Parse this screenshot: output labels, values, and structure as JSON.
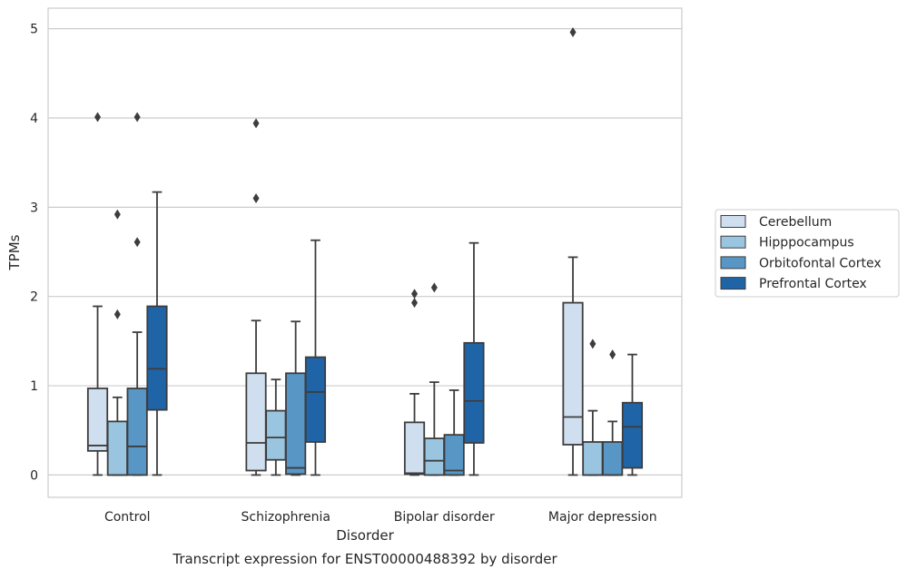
{
  "chart_data": {
    "type": "box",
    "title": "Transcript expression for ENST00000488392 by disorder",
    "xlabel": "Disorder",
    "ylabel": "TPMs",
    "ylim": [
      -0.25,
      5.23
    ],
    "yticks": [
      0,
      1,
      2,
      3,
      4,
      5
    ],
    "categories": [
      "Control",
      "Schizophrenia",
      "Bipolar disorder",
      "Major depression"
    ],
    "grid": "horizontal",
    "legend_position": "right",
    "series": [
      {
        "name": "Cerebellum",
        "color": "#d0dfef",
        "boxes": [
          {
            "whislo": 0.0,
            "q1": 0.27,
            "med": 0.33,
            "q3": 0.97,
            "whishi": 1.89,
            "fliers": [
              4.01
            ]
          },
          {
            "whislo": 0.0,
            "q1": 0.05,
            "med": 0.36,
            "q3": 1.14,
            "whishi": 1.73,
            "fliers": [
              3.1,
              3.94
            ]
          },
          {
            "whislo": 0.0,
            "q1": 0.01,
            "med": 0.02,
            "q3": 0.59,
            "whishi": 0.91,
            "fliers": [
              1.93,
              2.03
            ]
          },
          {
            "whislo": 0.0,
            "q1": 0.34,
            "med": 0.65,
            "q3": 1.93,
            "whishi": 2.44,
            "fliers": [
              4.96
            ]
          }
        ]
      },
      {
        "name": "Hipppocampus",
        "color": "#9ac5e0",
        "boxes": [
          {
            "whislo": 0.0,
            "q1": 0.0,
            "med": 0.0,
            "q3": 0.6,
            "whishi": 0.87,
            "fliers": [
              1.8,
              2.92
            ]
          },
          {
            "whislo": 0.0,
            "q1": 0.17,
            "med": 0.42,
            "q3": 0.72,
            "whishi": 1.07,
            "fliers": []
          },
          {
            "whislo": 0.0,
            "q1": 0.0,
            "med": 0.16,
            "q3": 0.41,
            "whishi": 1.04,
            "fliers": [
              2.1
            ]
          },
          {
            "whislo": 0.0,
            "q1": 0.0,
            "med": 0.0,
            "q3": 0.37,
            "whishi": 0.72,
            "fliers": [
              1.47
            ]
          }
        ]
      },
      {
        "name": "Orbitofontal Cortex",
        "color": "#5896c6",
        "boxes": [
          {
            "whislo": 0.0,
            "q1": 0.0,
            "med": 0.32,
            "q3": 0.97,
            "whishi": 1.6,
            "fliers": [
              2.61,
              4.01
            ]
          },
          {
            "whislo": 0.0,
            "q1": 0.01,
            "med": 0.08,
            "q3": 1.14,
            "whishi": 1.72,
            "fliers": []
          },
          {
            "whislo": 0.0,
            "q1": 0.0,
            "med": 0.05,
            "q3": 0.45,
            "whishi": 0.95,
            "fliers": []
          },
          {
            "whislo": 0.0,
            "q1": 0.0,
            "med": 0.0,
            "q3": 0.37,
            "whishi": 0.6,
            "fliers": [
              1.35
            ]
          }
        ]
      },
      {
        "name": "Prefrontal Cortex",
        "color": "#2064a8",
        "boxes": [
          {
            "whislo": 0.0,
            "q1": 0.73,
            "med": 1.19,
            "q3": 1.89,
            "whishi": 3.17,
            "fliers": []
          },
          {
            "whislo": 0.0,
            "q1": 0.37,
            "med": 0.93,
            "q3": 1.32,
            "whishi": 2.63,
            "fliers": []
          },
          {
            "whislo": 0.0,
            "q1": 0.36,
            "med": 0.83,
            "q3": 1.48,
            "whishi": 2.6,
            "fliers": []
          },
          {
            "whislo": 0.0,
            "q1": 0.08,
            "med": 0.54,
            "q3": 0.81,
            "whishi": 1.35,
            "fliers": []
          }
        ]
      }
    ]
  }
}
